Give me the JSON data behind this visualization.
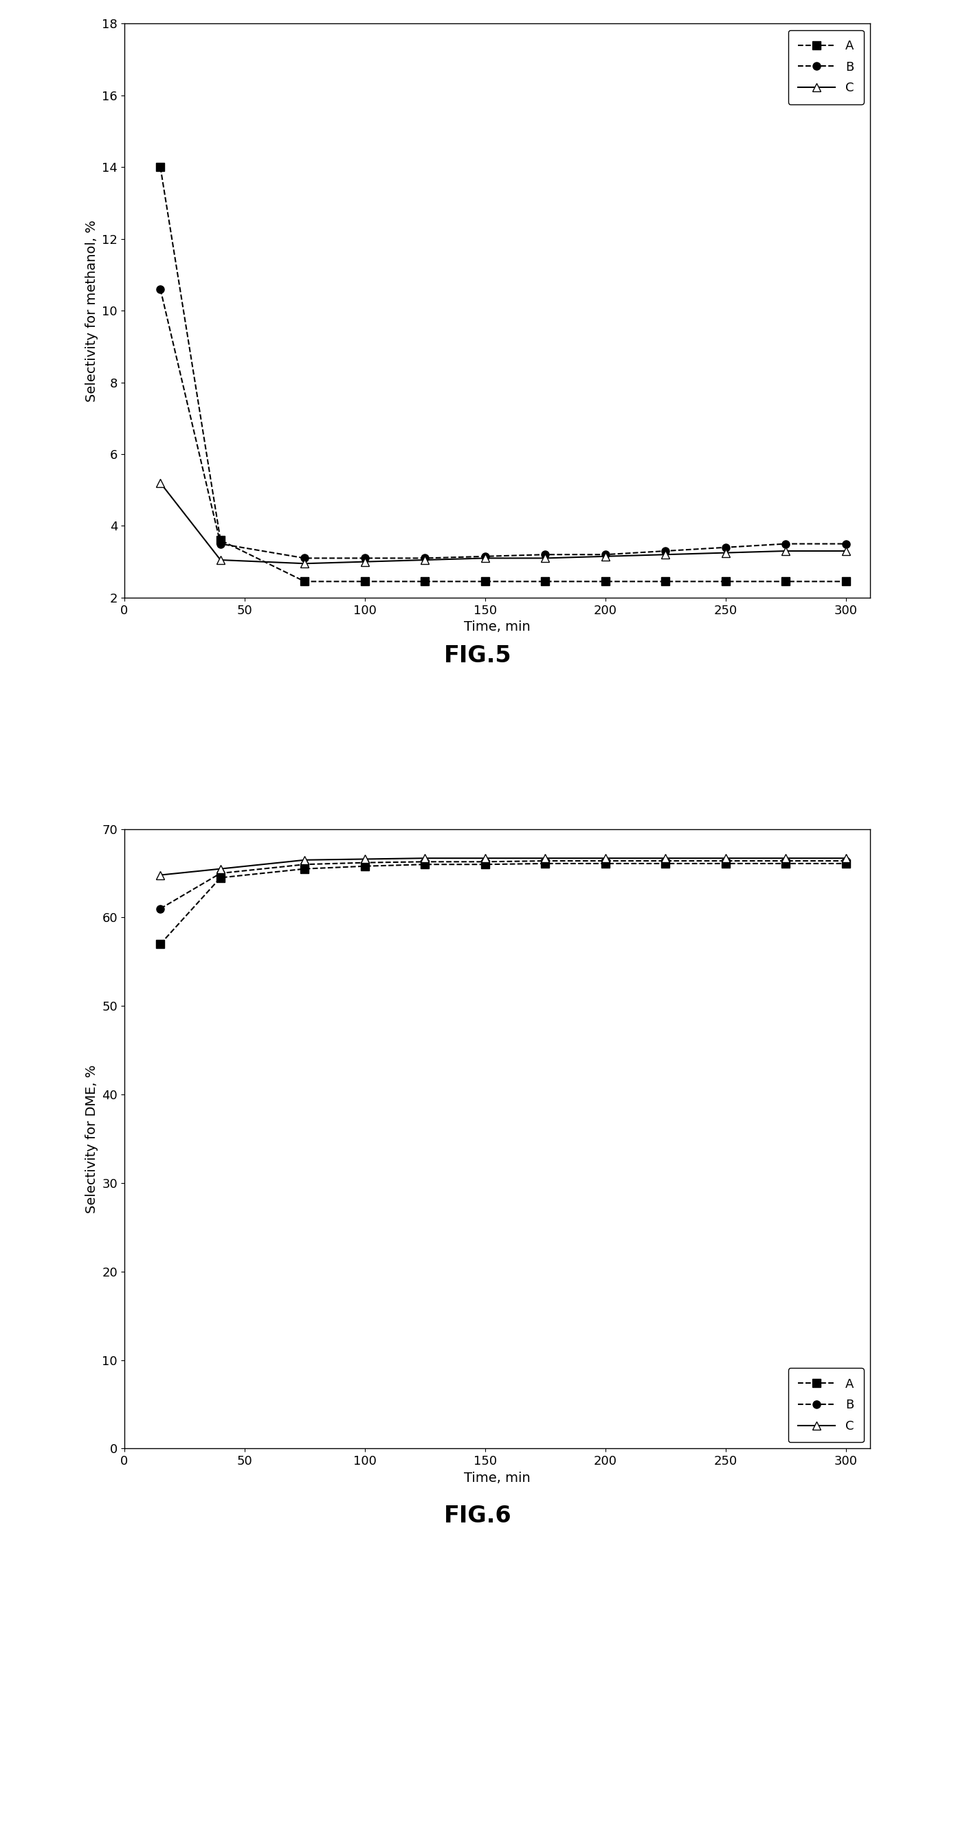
{
  "fig5": {
    "xlabel": "Time, min",
    "ylabel": "Selectivity for methanol, %",
    "ylim": [
      2,
      18
    ],
    "yticks": [
      2,
      4,
      6,
      8,
      10,
      12,
      14,
      16,
      18
    ],
    "xlim": [
      0,
      310
    ],
    "xticks": [
      0,
      50,
      100,
      150,
      200,
      250,
      300
    ],
    "series": [
      {
        "name": "A",
        "x": [
          15,
          40,
          75,
          100,
          125,
          150,
          175,
          200,
          225,
          250,
          275,
          300
        ],
        "y": [
          14.0,
          3.6,
          2.45,
          2.45,
          2.45,
          2.45,
          2.45,
          2.45,
          2.45,
          2.45,
          2.45,
          2.45
        ],
        "marker": "s",
        "linestyle": "--",
        "markerfacecolor": "black"
      },
      {
        "name": "B",
        "x": [
          15,
          40,
          75,
          100,
          125,
          150,
          175,
          200,
          225,
          250,
          275,
          300
        ],
        "y": [
          10.6,
          3.5,
          3.1,
          3.1,
          3.1,
          3.15,
          3.2,
          3.2,
          3.3,
          3.4,
          3.5,
          3.5
        ],
        "marker": "o",
        "linestyle": "--",
        "markerfacecolor": "black"
      },
      {
        "name": "C",
        "x": [
          15,
          40,
          75,
          100,
          125,
          150,
          175,
          200,
          225,
          250,
          275,
          300
        ],
        "y": [
          5.2,
          3.05,
          2.95,
          3.0,
          3.05,
          3.1,
          3.1,
          3.15,
          3.2,
          3.25,
          3.3,
          3.3
        ],
        "marker": "^",
        "linestyle": "-",
        "markerfacecolor": "white"
      }
    ]
  },
  "fig6": {
    "xlabel": "Time, min",
    "ylabel": "Selectivity for DME, %",
    "ylim": [
      0,
      70
    ],
    "yticks": [
      0,
      10,
      20,
      30,
      40,
      50,
      60,
      70
    ],
    "xlim": [
      0,
      310
    ],
    "xticks": [
      0,
      50,
      100,
      150,
      200,
      250,
      300
    ],
    "series": [
      {
        "name": "A",
        "x": [
          15,
          40,
          75,
          100,
          125,
          150,
          175,
          200,
          225,
          250,
          275,
          300
        ],
        "y": [
          57.0,
          64.5,
          65.5,
          65.8,
          66.0,
          66.0,
          66.1,
          66.1,
          66.1,
          66.1,
          66.1,
          66.1
        ],
        "marker": "s",
        "linestyle": "--",
        "markerfacecolor": "black"
      },
      {
        "name": "B",
        "x": [
          15,
          40,
          75,
          100,
          125,
          150,
          175,
          200,
          225,
          250,
          275,
          300
        ],
        "y": [
          61.0,
          65.0,
          66.0,
          66.2,
          66.3,
          66.3,
          66.4,
          66.4,
          66.4,
          66.4,
          66.4,
          66.4
        ],
        "marker": "o",
        "linestyle": "--",
        "markerfacecolor": "black"
      },
      {
        "name": "C",
        "x": [
          15,
          40,
          75,
          100,
          125,
          150,
          175,
          200,
          225,
          250,
          275,
          300
        ],
        "y": [
          64.8,
          65.5,
          66.5,
          66.6,
          66.7,
          66.7,
          66.7,
          66.7,
          66.7,
          66.7,
          66.7,
          66.7
        ],
        "marker": "^",
        "linestyle": "-",
        "markerfacecolor": "white"
      }
    ]
  },
  "background_color": "#ffffff",
  "fig_label_fontsize": 24,
  "axis_label_fontsize": 14,
  "tick_fontsize": 13,
  "legend_fontsize": 13,
  "fig_labels": [
    "FIG.5",
    "FIG.6"
  ]
}
